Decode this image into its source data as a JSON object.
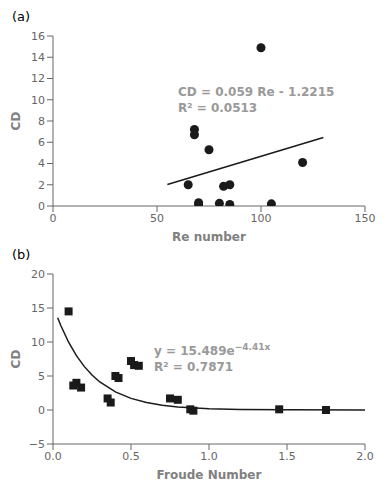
{
  "chart_data": [
    {
      "type": "scatter",
      "title": "(a)",
      "x_label": "Re number",
      "y_label": "CD",
      "xlim": [
        0,
        150
      ],
      "ylim": [
        0,
        16
      ],
      "xticks": [
        0,
        50,
        100,
        150
      ],
      "yticks": [
        0,
        2,
        4,
        6,
        8,
        10,
        12,
        14,
        16
      ],
      "grid": false,
      "series": [
        {
          "type": "scatter",
          "marker": "circle",
          "color": "#1a1a1a",
          "x": [
            65,
            68,
            68,
            70,
            70,
            75,
            80,
            82,
            85,
            85,
            100,
            105,
            120
          ],
          "values": [
            2.0,
            7.2,
            6.7,
            0.15,
            0.3,
            5.3,
            0.25,
            1.85,
            2.0,
            0.15,
            14.9,
            0.2,
            4.1
          ]
        },
        {
          "type": "line",
          "color": "#1a1a1a",
          "x": [
            55,
            130
          ],
          "values": [
            2.0235,
            6.4485
          ]
        }
      ],
      "annotations": [
        {
          "text": "CD = 0.059 Re - 1.2215",
          "color": "#999999"
        },
        {
          "text": "R² = 0.0513",
          "color": "#999999"
        }
      ]
    },
    {
      "type": "scatter",
      "title": "(b)",
      "x_label": "Froude Number",
      "y_label": "CD",
      "xlim": [
        0,
        2
      ],
      "ylim": [
        -5,
        20
      ],
      "xticks": [
        {
          "value": 0,
          "label": "0.0"
        },
        0.5,
        {
          "value": 1,
          "label": "1.0"
        },
        1.5,
        {
          "value": 2,
          "label": "2.0"
        }
      ],
      "yticks": [
        {
          "value": -5,
          "label": "−5"
        },
        0,
        5,
        10,
        15,
        20
      ],
      "grid": false,
      "series": [
        {
          "type": "scatter",
          "marker": "square",
          "color": "#1a1a1a",
          "x": [
            0.1,
            0.13,
            0.15,
            0.18,
            0.35,
            0.37,
            0.4,
            0.42,
            0.5,
            0.52,
            0.55,
            0.75,
            0.8,
            0.88,
            0.9,
            1.45,
            1.75
          ],
          "values": [
            14.5,
            3.6,
            4.0,
            3.3,
            1.7,
            1.1,
            5.0,
            4.7,
            7.2,
            6.6,
            6.5,
            1.7,
            1.5,
            0.1,
            -0.1,
            0.1,
            0.0
          ]
        },
        {
          "type": "line",
          "color": "#1a1a1a",
          "x": [
            0.03,
            0.05,
            0.1,
            0.15,
            0.2,
            0.25,
            0.3,
            0.4,
            0.5,
            0.6,
            0.7,
            0.8,
            1.0,
            1.2,
            1.5,
            2.0
          ],
          "values": [
            13.5696,
            12.4241,
            9.9655,
            7.9938,
            6.4117,
            5.1427,
            4.1249,
            2.6539,
            1.7077,
            1.0986,
            0.7069,
            0.4548,
            0.1883,
            0.078,
            0.0207,
            0.0023
          ]
        }
      ],
      "annotations": [
        {
          "text": "y = 15.489e",
          "superscript": "−4.41x",
          "color": "#999999"
        },
        {
          "text": "R² = 0.7871",
          "color": "#999999"
        }
      ]
    }
  ]
}
